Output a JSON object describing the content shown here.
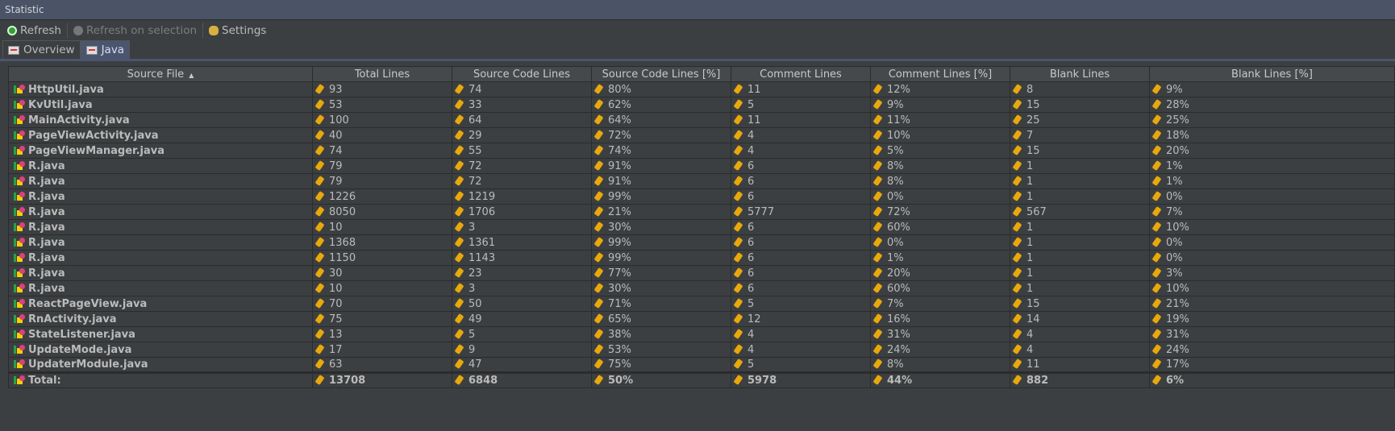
{
  "window": {
    "title": "Statistic"
  },
  "toolbar": {
    "refresh": "Refresh",
    "refresh_on_selection": "Refresh on selection",
    "settings": "Settings"
  },
  "tabs": [
    {
      "label": "Overview",
      "active": false
    },
    {
      "label": "Java",
      "active": true
    }
  ],
  "table": {
    "columns": [
      "Source File",
      "Total Lines",
      "Source Code Lines",
      "Source Code Lines [%]",
      "Comment Lines",
      "Comment Lines [%]",
      "Blank Lines",
      "Blank Lines [%]"
    ],
    "sort_indicator": "▲",
    "rows": [
      [
        "HttpUtil.java",
        "93",
        "74",
        "80%",
        "11",
        "12%",
        "8",
        "9%"
      ],
      [
        "KvUtil.java",
        "53",
        "33",
        "62%",
        "5",
        "9%",
        "15",
        "28%"
      ],
      [
        "MainActivity.java",
        "100",
        "64",
        "64%",
        "11",
        "11%",
        "25",
        "25%"
      ],
      [
        "PageViewActivity.java",
        "40",
        "29",
        "72%",
        "4",
        "10%",
        "7",
        "18%"
      ],
      [
        "PageViewManager.java",
        "74",
        "55",
        "74%",
        "4",
        "5%",
        "15",
        "20%"
      ],
      [
        "R.java",
        "79",
        "72",
        "91%",
        "6",
        "8%",
        "1",
        "1%"
      ],
      [
        "R.java",
        "79",
        "72",
        "91%",
        "6",
        "8%",
        "1",
        "1%"
      ],
      [
        "R.java",
        "1226",
        "1219",
        "99%",
        "6",
        "0%",
        "1",
        "0%"
      ],
      [
        "R.java",
        "8050",
        "1706",
        "21%",
        "5777",
        "72%",
        "567",
        "7%"
      ],
      [
        "R.java",
        "10",
        "3",
        "30%",
        "6",
        "60%",
        "1",
        "10%"
      ],
      [
        "R.java",
        "1368",
        "1361",
        "99%",
        "6",
        "0%",
        "1",
        "0%"
      ],
      [
        "R.java",
        "1150",
        "1143",
        "99%",
        "6",
        "1%",
        "1",
        "0%"
      ],
      [
        "R.java",
        "30",
        "23",
        "77%",
        "6",
        "20%",
        "1",
        "3%"
      ],
      [
        "R.java",
        "10",
        "3",
        "30%",
        "6",
        "60%",
        "1",
        "10%"
      ],
      [
        "ReactPageView.java",
        "70",
        "50",
        "71%",
        "5",
        "7%",
        "15",
        "21%"
      ],
      [
        "RnActivity.java",
        "75",
        "49",
        "65%",
        "12",
        "16%",
        "14",
        "19%"
      ],
      [
        "StateListener.java",
        "13",
        "5",
        "38%",
        "4",
        "31%",
        "4",
        "31%"
      ],
      [
        "UpdateMode.java",
        "17",
        "9",
        "53%",
        "4",
        "24%",
        "4",
        "24%"
      ],
      [
        "UpdaterModule.java",
        "63",
        "47",
        "75%",
        "5",
        "8%",
        "11",
        "17%"
      ]
    ],
    "total": [
      "Total:",
      "13708",
      "6848",
      "50%",
      "5978",
      "44%",
      "882",
      "6%"
    ]
  }
}
